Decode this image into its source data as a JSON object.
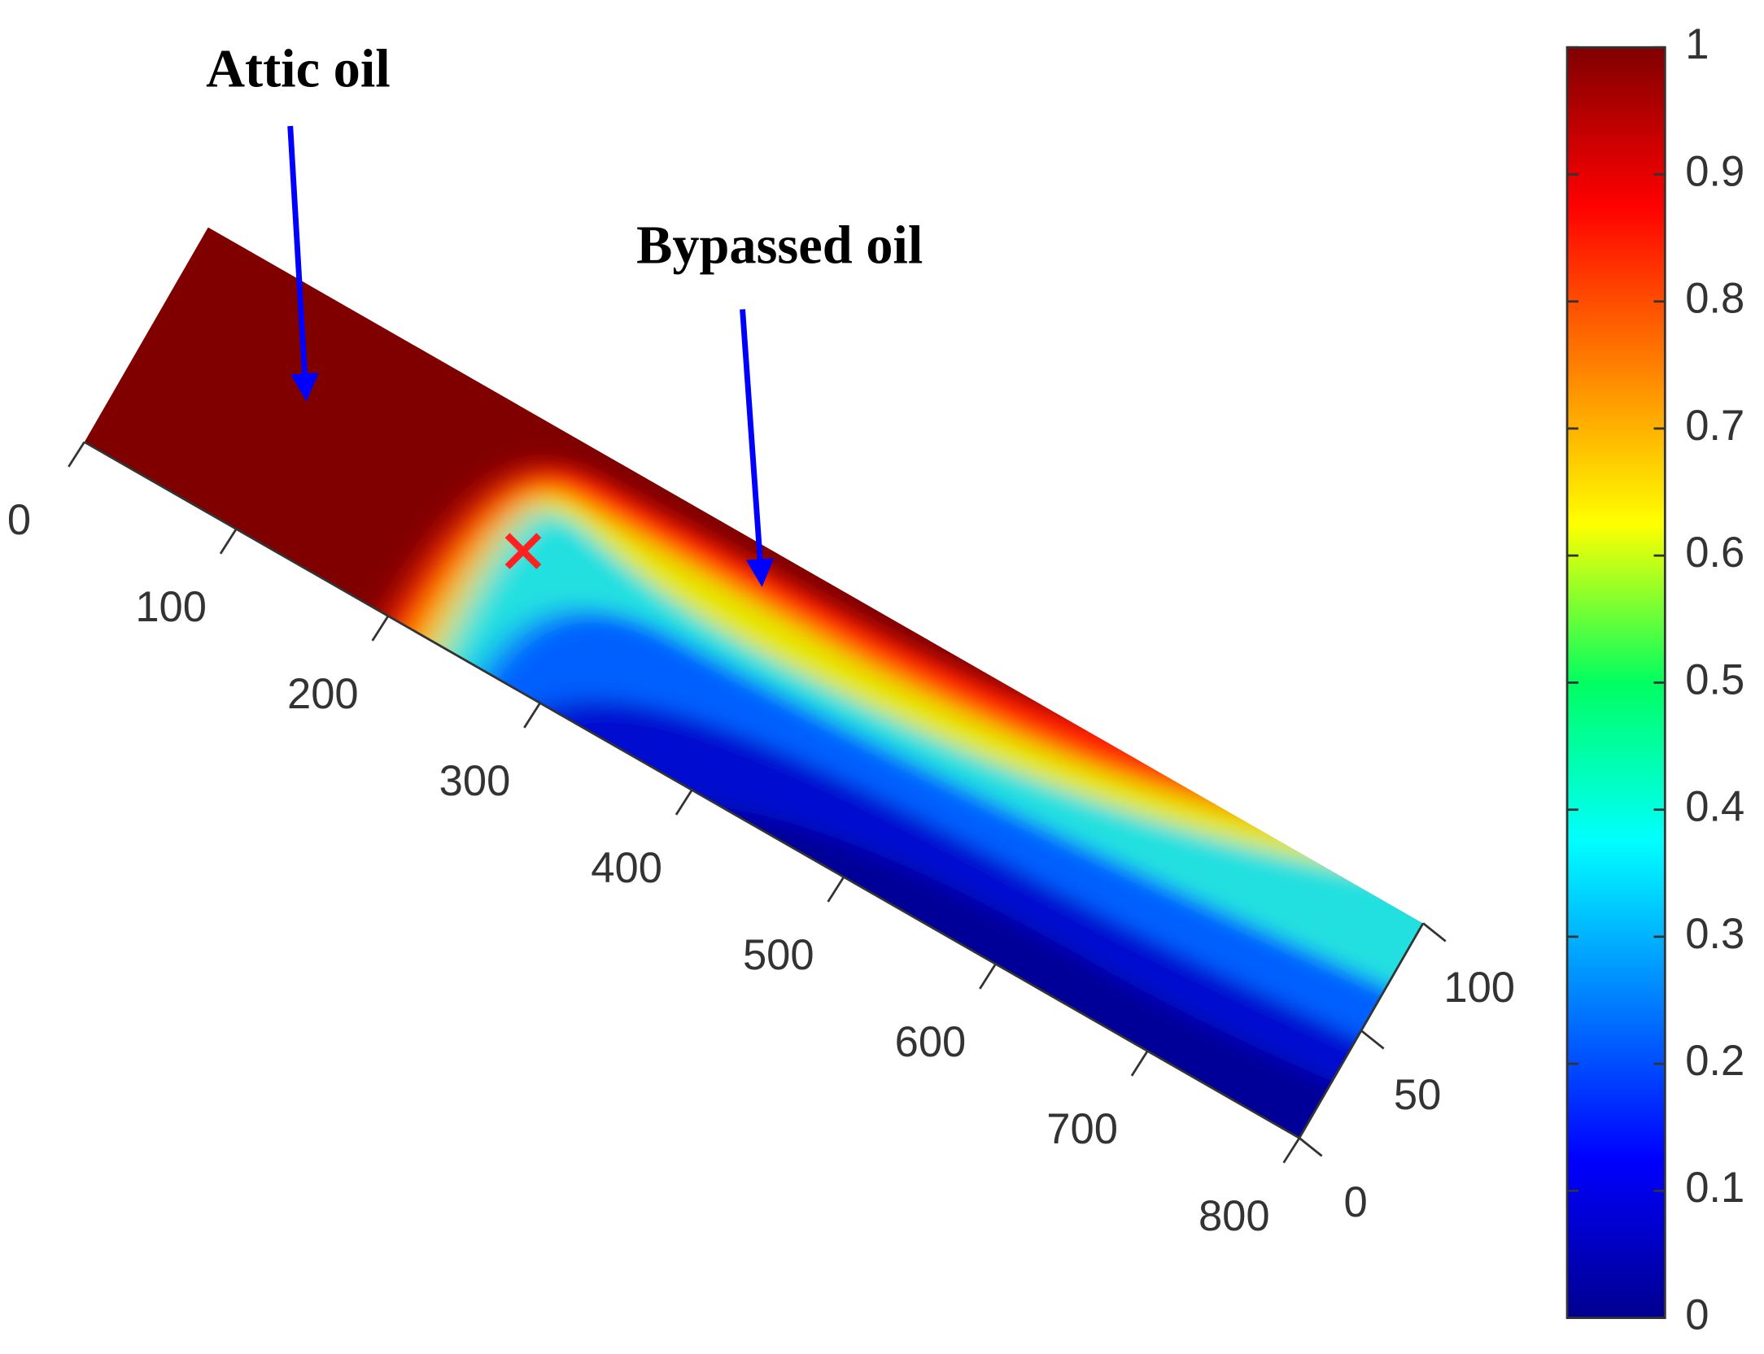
{
  "chart_data": {
    "type": "surface",
    "annotations": [
      "Attic oil",
      "Bypassed oil"
    ],
    "xlim": [
      0,
      800
    ],
    "xticks": [
      0,
      100,
      200,
      300,
      400,
      500,
      600,
      700,
      800
    ],
    "ylim": [
      0,
      100
    ],
    "yticks": [
      0,
      50,
      100
    ],
    "colorbar": {
      "lim": [
        0,
        1
      ],
      "ticks": [
        0,
        0.1,
        0.2,
        0.3,
        0.4,
        0.5,
        0.6,
        0.7,
        0.8,
        0.9,
        1
      ],
      "colormap": "jet"
    }
  }
}
